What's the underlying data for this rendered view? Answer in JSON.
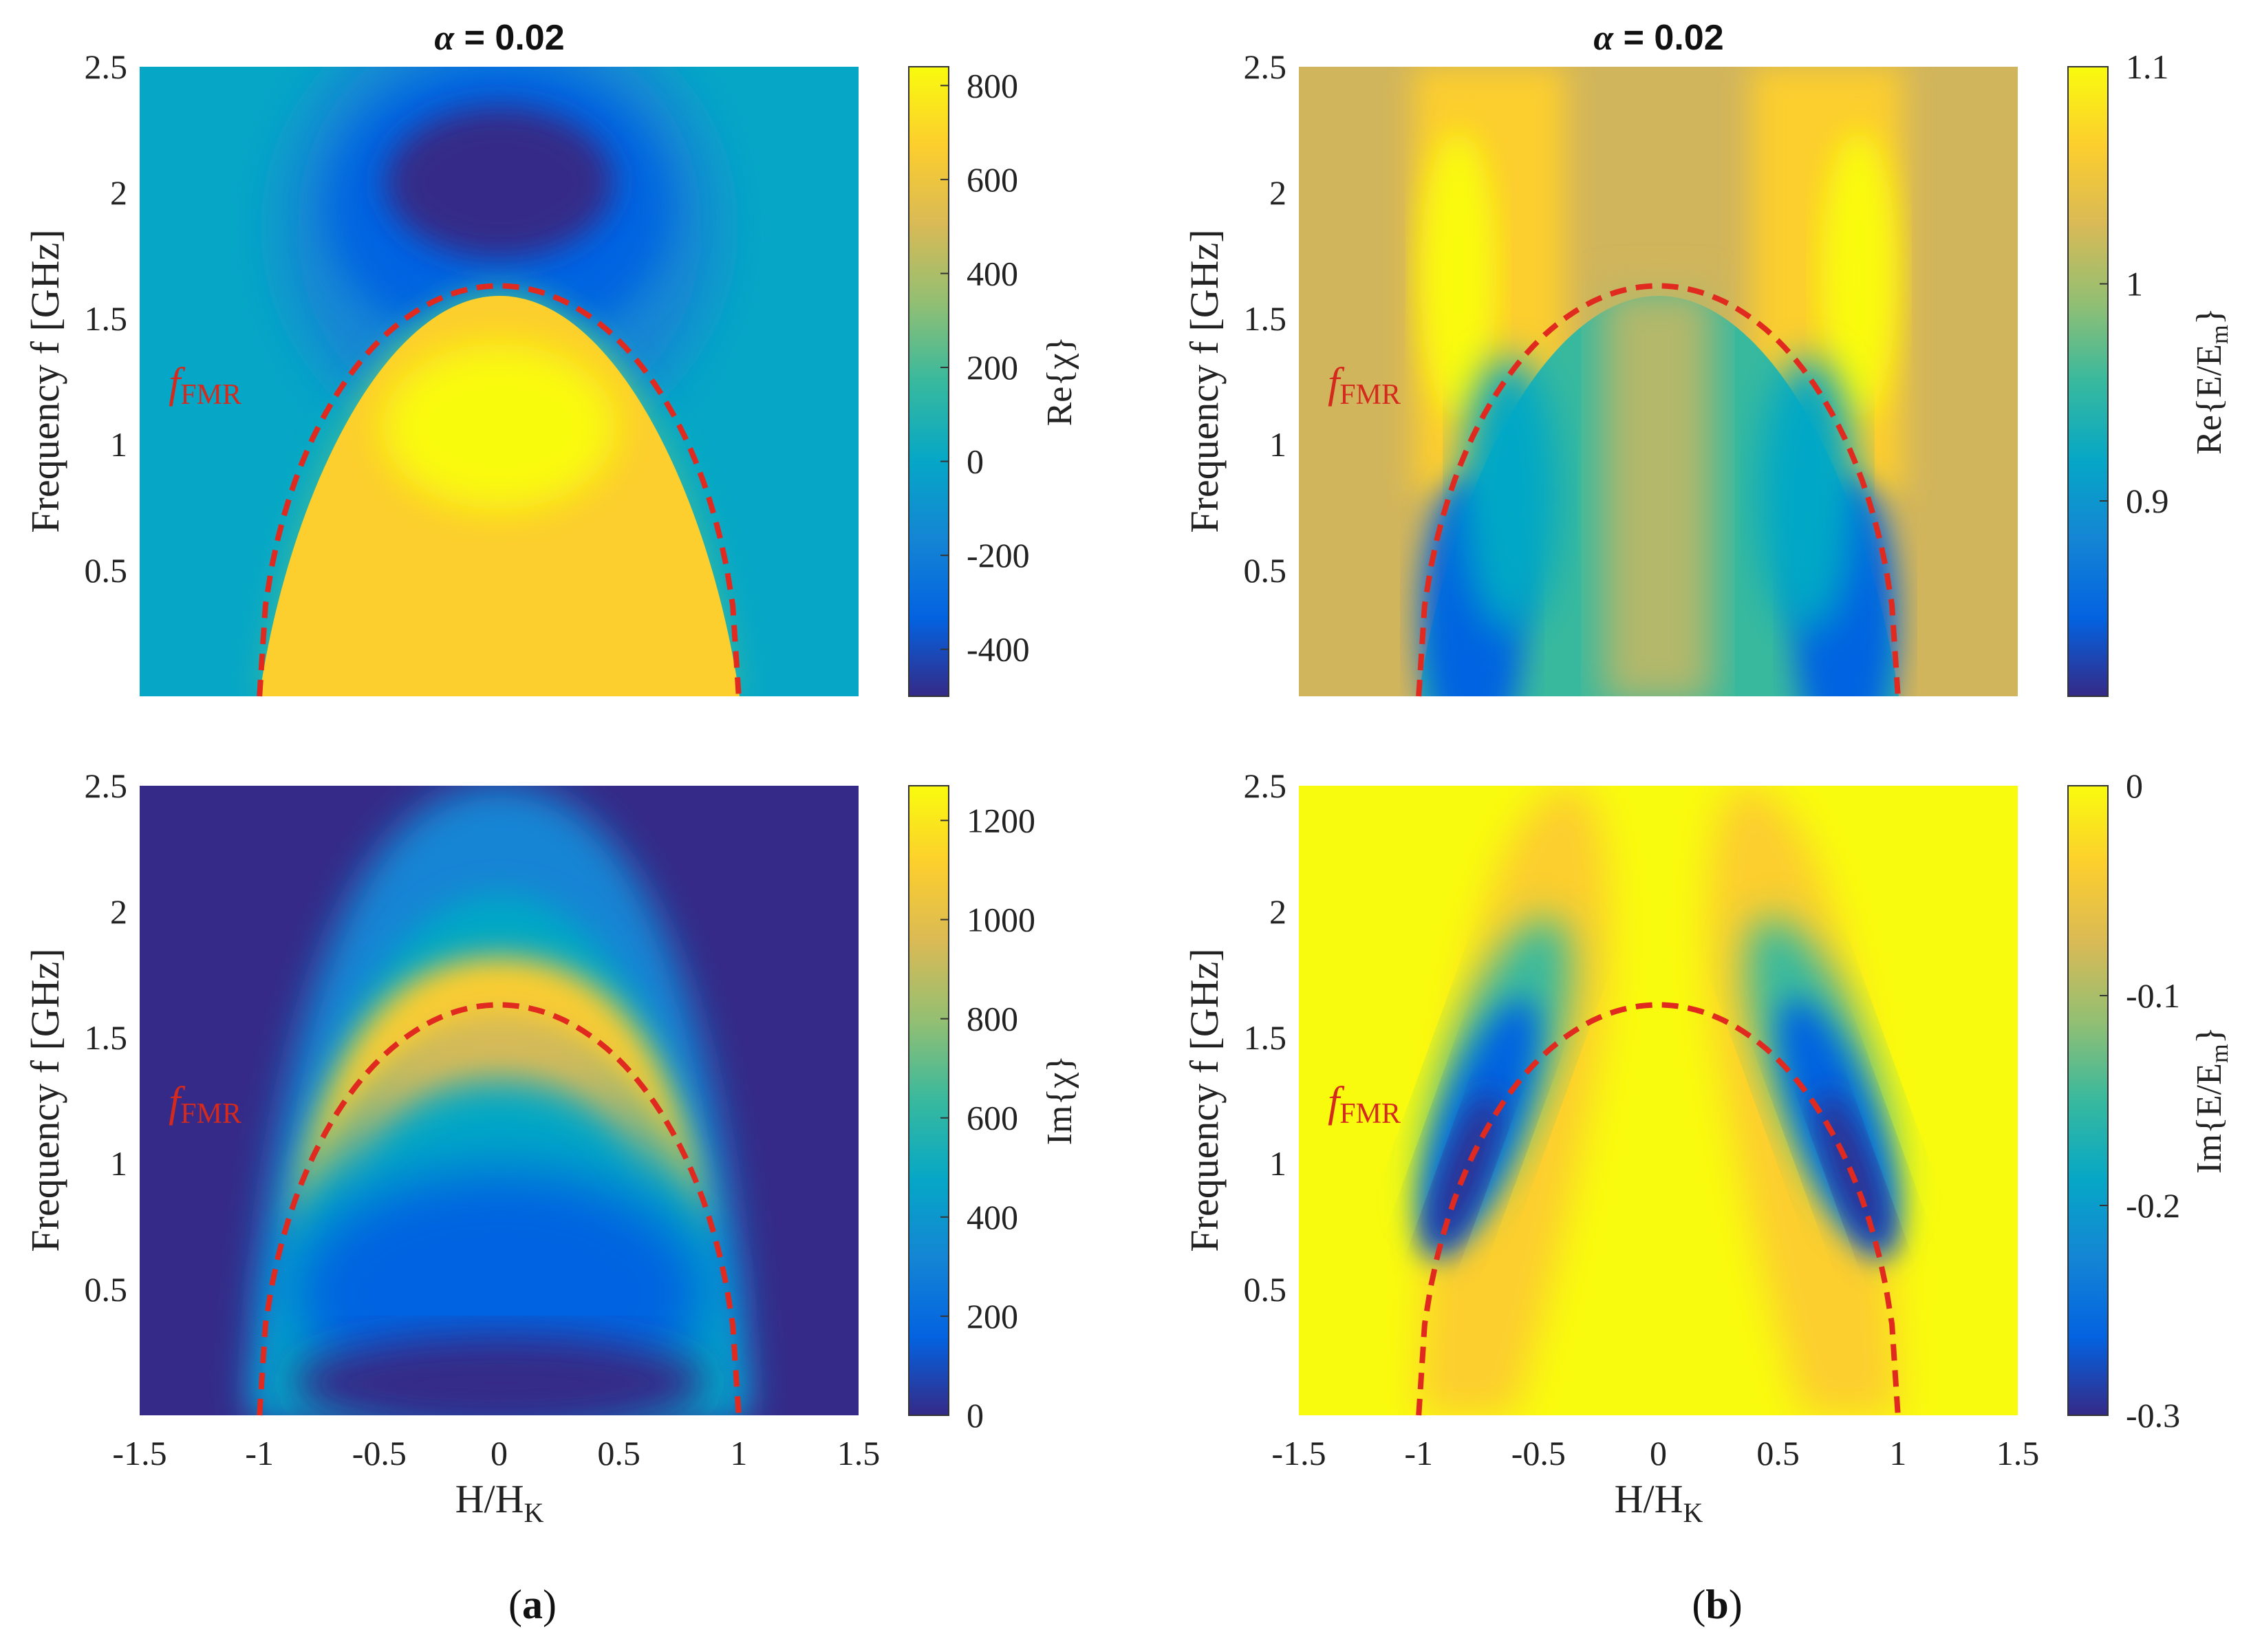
{
  "colors": {
    "parula": [
      "#352a87",
      "#0363e1",
      "#1485d4",
      "#06a7c6",
      "#38b99e",
      "#92bf73",
      "#d9ba56",
      "#fcce2e",
      "#f9fb0e"
    ],
    "fmr_curve": "#e02a20"
  },
  "labels": {
    "panel_a": "(a)",
    "panel_a_letter": "a",
    "panel_b": "(b)",
    "panel_b_letter": "b",
    "fmr_main": "f",
    "fmr_sub": "FMR"
  },
  "chart_data": [
    {
      "type": "heatmap",
      "id": "re_chi",
      "title": "α = 0.02",
      "title_alpha": "α",
      "title_rest": " = 0.02",
      "xlabel": "",
      "ylabel": "Frequency f [GHz]",
      "xlim": [
        -1.5,
        1.5
      ],
      "ylim": [
        0,
        2.5
      ],
      "xticks": [],
      "yticks": [
        "0.5",
        "1",
        "1.5",
        "2",
        "2.5"
      ],
      "ytick_values": [
        0.5,
        1,
        1.5,
        2,
        2.5
      ],
      "colorbar": {
        "label": "Re{χ}",
        "min": -500,
        "max": 840,
        "ticks": [
          "-400",
          "-200",
          "0",
          "200",
          "400",
          "600",
          "800"
        ],
        "tick_values": [
          -400,
          -200,
          0,
          200,
          400,
          600,
          800
        ]
      },
      "fmr_curve": {
        "label": "fFMR",
        "x": [
          -1,
          -0.75,
          -0.5,
          -0.25,
          0,
          0.25,
          0.5,
          0.75,
          1
        ],
        "y": [
          0,
          1.08,
          1.42,
          1.58,
          1.63,
          1.58,
          1.42,
          1.08,
          0
        ]
      }
    },
    {
      "type": "heatmap",
      "id": "re_em",
      "title": "α = 0.02",
      "title_alpha": "α",
      "title_rest": " = 0.02",
      "xlabel": "",
      "ylabel": "Frequency f [GHz]",
      "xlim": [
        -1.5,
        1.5
      ],
      "ylim": [
        0,
        2.5
      ],
      "xticks": [],
      "yticks": [
        "0.5",
        "1",
        "1.5",
        "2",
        "2.5"
      ],
      "ytick_values": [
        0.5,
        1,
        1.5,
        2,
        2.5
      ],
      "colorbar": {
        "label": "Re{E/E",
        "label_sub": "m",
        "label_end": "}",
        "min": 0.81,
        "max": 1.1,
        "ticks": [
          "0.9",
          "1",
          "1.1"
        ],
        "tick_values": [
          0.9,
          1,
          1.1
        ]
      },
      "fmr_curve": {
        "label": "fFMR",
        "x": [
          -1,
          -0.75,
          -0.5,
          -0.25,
          0,
          0.25,
          0.5,
          0.75,
          1
        ],
        "y": [
          0,
          1.08,
          1.42,
          1.58,
          1.63,
          1.58,
          1.42,
          1.08,
          0
        ]
      }
    },
    {
      "type": "heatmap",
      "id": "im_chi",
      "title": "",
      "xlabel": "H/H",
      "xlabel_sub": "K",
      "ylabel": "Frequency f [GHz]",
      "xlim": [
        -1.5,
        1.5
      ],
      "ylim": [
        0,
        2.5
      ],
      "xticks": [
        "-1.5",
        "-1",
        "-0.5",
        "0",
        "0.5",
        "1",
        "1.5"
      ],
      "xtick_values": [
        -1.5,
        -1,
        -0.5,
        0,
        0.5,
        1,
        1.5
      ],
      "yticks": [
        "0.5",
        "1",
        "1.5",
        "2",
        "2.5"
      ],
      "ytick_values": [
        0.5,
        1,
        1.5,
        2,
        2.5
      ],
      "colorbar": {
        "label": "Im{χ}",
        "min": 0,
        "max": 1270,
        "ticks": [
          "0",
          "200",
          "400",
          "600",
          "800",
          "1000",
          "1200"
        ],
        "tick_values": [
          0,
          200,
          400,
          600,
          800,
          1000,
          1200
        ]
      },
      "fmr_curve": {
        "label": "fFMR",
        "x": [
          -1,
          -0.75,
          -0.5,
          -0.25,
          0,
          0.25,
          0.5,
          0.75,
          1
        ],
        "y": [
          0,
          1.08,
          1.42,
          1.58,
          1.63,
          1.58,
          1.42,
          1.08,
          0
        ]
      }
    },
    {
      "type": "heatmap",
      "id": "im_em",
      "title": "",
      "xlabel": "H/H",
      "xlabel_sub": "K",
      "ylabel": "Frequency f [GHz]",
      "xlim": [
        -1.5,
        1.5
      ],
      "ylim": [
        0,
        2.5
      ],
      "xticks": [
        "-1.5",
        "-1",
        "-0.5",
        "0",
        "0.5",
        "1",
        "1.5"
      ],
      "xtick_values": [
        -1.5,
        -1,
        -0.5,
        0,
        0.5,
        1,
        1.5
      ],
      "yticks": [
        "0.5",
        "1",
        "1.5",
        "2",
        "2.5"
      ],
      "ytick_values": [
        0.5,
        1,
        1.5,
        2,
        2.5
      ],
      "colorbar": {
        "label": "Im{E/E",
        "label_sub": "m",
        "label_end": "}",
        "min": -0.3,
        "max": 0,
        "ticks": [
          "-0.3",
          "-0.2",
          "-0.1",
          "0"
        ],
        "tick_values": [
          -0.3,
          -0.2,
          -0.1,
          0
        ]
      },
      "fmr_curve": {
        "label": "fFMR",
        "x": [
          -1,
          -0.75,
          -0.5,
          -0.25,
          0,
          0.25,
          0.5,
          0.75,
          1
        ],
        "y": [
          0,
          1.08,
          1.42,
          1.58,
          1.63,
          1.58,
          1.42,
          1.08,
          0
        ]
      }
    }
  ]
}
